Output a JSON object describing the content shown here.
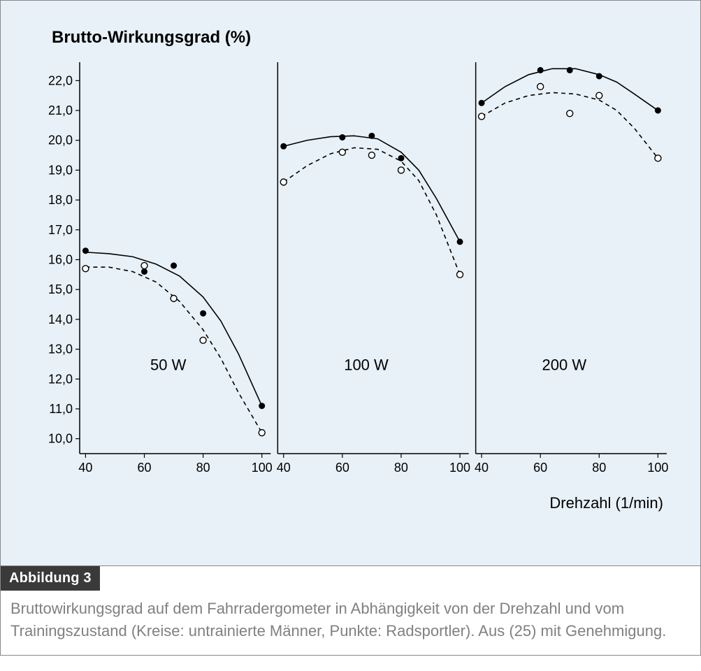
{
  "figure": {
    "label": "Abbildung 3",
    "caption": "Bruttowirkungsgrad auf dem Fahrradergometer in Abhängigkeit von der Drehzahl und vom Trainingszustand (Kreise: untrainierte Männer, Punkte: Radsportler). Aus (25) mit Genehmigung."
  },
  "chart": {
    "title": "Brutto-Wirkungsgrad (%)",
    "xlabel": "Drehzahl (1/min)",
    "background_color": "#e8f1f8",
    "plot_background": "#ffffff",
    "axis_color": "#000000",
    "text_color": "#000000",
    "title_fontsize": 24,
    "axis_label_fontsize": 22,
    "tick_fontsize": 18,
    "panel_label_fontsize": 22,
    "ylim": [
      9.5,
      22.5
    ],
    "yticks": [
      10.0,
      11.0,
      12.0,
      13.0,
      14.0,
      15.0,
      16.0,
      17.0,
      18.0,
      19.0,
      20.0,
      21.0,
      22.0
    ],
    "ytick_labels": [
      "10,0",
      "11,0",
      "12,0",
      "13,0",
      "14,0",
      "15,0",
      "16,0",
      "17,0",
      "18,0",
      "19,0",
      "20,0",
      "21,0",
      "22,0"
    ],
    "xlim": [
      38,
      103
    ],
    "xticks": [
      40,
      60,
      80,
      100
    ],
    "xtick_labels": [
      "40",
      "60",
      "80",
      "100"
    ],
    "marker_size": 4.5,
    "line_width": 1.6,
    "dash_pattern": "6,5",
    "series_colors": {
      "filled": "#000000",
      "open_stroke": "#000000",
      "open_fill": "#ffffff"
    },
    "panels": [
      {
        "label": "50 W",
        "filled_points": [
          [
            40,
            16.3
          ],
          [
            60,
            15.6
          ],
          [
            70,
            15.8
          ],
          [
            80,
            14.2
          ],
          [
            100,
            11.1
          ]
        ],
        "open_points": [
          [
            40,
            15.7
          ],
          [
            60,
            15.8
          ],
          [
            70,
            14.7
          ],
          [
            80,
            13.3
          ],
          [
            100,
            10.2
          ]
        ],
        "filled_curve": [
          [
            40,
            16.25
          ],
          [
            48,
            16.2
          ],
          [
            56,
            16.1
          ],
          [
            64,
            15.85
          ],
          [
            72,
            15.45
          ],
          [
            80,
            14.75
          ],
          [
            86,
            13.95
          ],
          [
            92,
            12.85
          ],
          [
            100,
            11.1
          ]
        ],
        "open_curve": [
          [
            40,
            15.75
          ],
          [
            48,
            15.75
          ],
          [
            56,
            15.6
          ],
          [
            64,
            15.25
          ],
          [
            72,
            14.6
          ],
          [
            80,
            13.65
          ],
          [
            86,
            12.7
          ],
          [
            92,
            11.55
          ],
          [
            100,
            10.2
          ]
        ]
      },
      {
        "label": "100 W",
        "filled_points": [
          [
            40,
            19.8
          ],
          [
            60,
            20.1
          ],
          [
            70,
            20.15
          ],
          [
            80,
            19.4
          ],
          [
            100,
            16.6
          ]
        ],
        "open_points": [
          [
            40,
            18.6
          ],
          [
            60,
            19.6
          ],
          [
            70,
            19.5
          ],
          [
            80,
            19.0
          ],
          [
            100,
            15.5
          ]
        ],
        "filled_curve": [
          [
            40,
            19.8
          ],
          [
            48,
            20.0
          ],
          [
            56,
            20.12
          ],
          [
            64,
            20.15
          ],
          [
            72,
            20.05
          ],
          [
            80,
            19.6
          ],
          [
            86,
            19.0
          ],
          [
            92,
            18.05
          ],
          [
            100,
            16.6
          ]
        ],
        "open_curve": [
          [
            40,
            18.6
          ],
          [
            48,
            19.15
          ],
          [
            56,
            19.55
          ],
          [
            64,
            19.75
          ],
          [
            72,
            19.7
          ],
          [
            80,
            19.3
          ],
          [
            86,
            18.65
          ],
          [
            92,
            17.5
          ],
          [
            100,
            15.5
          ]
        ]
      },
      {
        "label": "200 W",
        "filled_points": [
          [
            40,
            21.25
          ],
          [
            60,
            22.35
          ],
          [
            70,
            22.35
          ],
          [
            80,
            22.15
          ],
          [
            100,
            21.0
          ]
        ],
        "open_points": [
          [
            40,
            20.8
          ],
          [
            60,
            21.8
          ],
          [
            70,
            20.9
          ],
          [
            80,
            21.5
          ],
          [
            100,
            19.4
          ]
        ],
        "filled_curve": [
          [
            40,
            21.25
          ],
          [
            48,
            21.8
          ],
          [
            56,
            22.2
          ],
          [
            64,
            22.4
          ],
          [
            72,
            22.4
          ],
          [
            80,
            22.2
          ],
          [
            86,
            21.95
          ],
          [
            92,
            21.55
          ],
          [
            100,
            21.0
          ]
        ],
        "open_curve": [
          [
            40,
            20.8
          ],
          [
            48,
            21.25
          ],
          [
            56,
            21.5
          ],
          [
            64,
            21.6
          ],
          [
            72,
            21.55
          ],
          [
            80,
            21.35
          ],
          [
            86,
            21.0
          ],
          [
            92,
            20.4
          ],
          [
            100,
            19.4
          ]
        ]
      }
    ]
  }
}
